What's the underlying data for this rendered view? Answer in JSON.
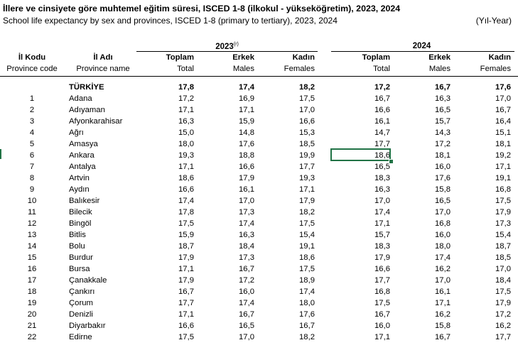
{
  "title": "İllere ve cinsiyete göre muhtemel eğitim süresi, ISCED 1-8 (ilkokul - yükseköğretim), 2023, 2024",
  "subtitle": "School life expectancy by sex and provinces, ISCED 1-8 (primary to tertiary), 2023, 2024",
  "unit": "(Yıl-Year)",
  "years": {
    "y2023": "2023",
    "y2023_note": "(r)",
    "y2024": "2024"
  },
  "headers": {
    "code_tr": "İl Kodu",
    "code_en": "Province code",
    "name_tr": "İl Adı",
    "name_en": "Province name",
    "total_tr": "Toplam",
    "total_en": "Total",
    "male_tr": "Erkek",
    "male_en": "Males",
    "female_tr": "Kadın",
    "female_en": "Females"
  },
  "rows": [
    {
      "code": "",
      "name": "TÜRKİYE",
      "v": [
        "17,8",
        "17,4",
        "18,2",
        "17,2",
        "16,7",
        "17,6"
      ],
      "total": true
    },
    {
      "code": "1",
      "name": "Adana",
      "v": [
        "17,2",
        "16,9",
        "17,5",
        "16,7",
        "16,3",
        "17,0"
      ]
    },
    {
      "code": "2",
      "name": "Adıyaman",
      "v": [
        "17,1",
        "17,1",
        "17,0",
        "16,6",
        "16,5",
        "16,7"
      ]
    },
    {
      "code": "3",
      "name": "Afyonkarahisar",
      "v": [
        "16,3",
        "15,9",
        "16,6",
        "16,1",
        "15,7",
        "16,4"
      ]
    },
    {
      "code": "4",
      "name": "Ağrı",
      "v": [
        "15,0",
        "14,8",
        "15,3",
        "14,7",
        "14,3",
        "15,1"
      ]
    },
    {
      "code": "5",
      "name": "Amasya",
      "v": [
        "18,0",
        "17,6",
        "18,5",
        "17,7",
        "17,2",
        "18,1"
      ]
    },
    {
      "code": "6",
      "name": "Ankara",
      "v": [
        "19,3",
        "18,8",
        "19,9",
        "18,6",
        "18,1",
        "19,2"
      ]
    },
    {
      "code": "7",
      "name": "Antalya",
      "v": [
        "17,1",
        "16,6",
        "17,7",
        "16,5",
        "16,0",
        "17,1"
      ]
    },
    {
      "code": "8",
      "name": "Artvin",
      "v": [
        "18,6",
        "17,9",
        "19,3",
        "18,3",
        "17,6",
        "19,1"
      ]
    },
    {
      "code": "9",
      "name": "Aydın",
      "v": [
        "16,6",
        "16,1",
        "17,1",
        "16,3",
        "15,8",
        "16,8"
      ]
    },
    {
      "code": "10",
      "name": "Balıkesir",
      "v": [
        "17,4",
        "17,0",
        "17,9",
        "17,0",
        "16,5",
        "17,5"
      ]
    },
    {
      "code": "11",
      "name": "Bilecik",
      "v": [
        "17,8",
        "17,3",
        "18,2",
        "17,4",
        "17,0",
        "17,9"
      ]
    },
    {
      "code": "12",
      "name": "Bingöl",
      "v": [
        "17,5",
        "17,4",
        "17,5",
        "17,1",
        "16,8",
        "17,3"
      ]
    },
    {
      "code": "13",
      "name": "Bitlis",
      "v": [
        "15,9",
        "16,3",
        "15,4",
        "15,7",
        "16,0",
        "15,4"
      ]
    },
    {
      "code": "14",
      "name": "Bolu",
      "v": [
        "18,7",
        "18,4",
        "19,1",
        "18,3",
        "18,0",
        "18,7"
      ]
    },
    {
      "code": "15",
      "name": "Burdur",
      "v": [
        "17,9",
        "17,3",
        "18,6",
        "17,9",
        "17,4",
        "18,5"
      ]
    },
    {
      "code": "16",
      "name": "Bursa",
      "v": [
        "17,1",
        "16,7",
        "17,5",
        "16,6",
        "16,2",
        "17,0"
      ]
    },
    {
      "code": "17",
      "name": "Çanakkale",
      "v": [
        "17,9",
        "17,2",
        "18,9",
        "17,7",
        "17,0",
        "18,4"
      ]
    },
    {
      "code": "18",
      "name": "Çankırı",
      "v": [
        "16,7",
        "16,0",
        "17,4",
        "16,8",
        "16,1",
        "17,5"
      ]
    },
    {
      "code": "19",
      "name": "Çorum",
      "v": [
        "17,7",
        "17,4",
        "18,0",
        "17,5",
        "17,1",
        "17,9"
      ]
    },
    {
      "code": "20",
      "name": "Denizli",
      "v": [
        "17,1",
        "16,7",
        "17,6",
        "16,7",
        "16,2",
        "17,2"
      ]
    },
    {
      "code": "21",
      "name": "Diyarbakır",
      "v": [
        "16,6",
        "16,5",
        "16,7",
        "16,0",
        "15,8",
        "16,2"
      ]
    },
    {
      "code": "22",
      "name": "Edirne",
      "v": [
        "17,5",
        "17,0",
        "18,2",
        "17,1",
        "16,7",
        "17,7"
      ]
    }
  ]
}
